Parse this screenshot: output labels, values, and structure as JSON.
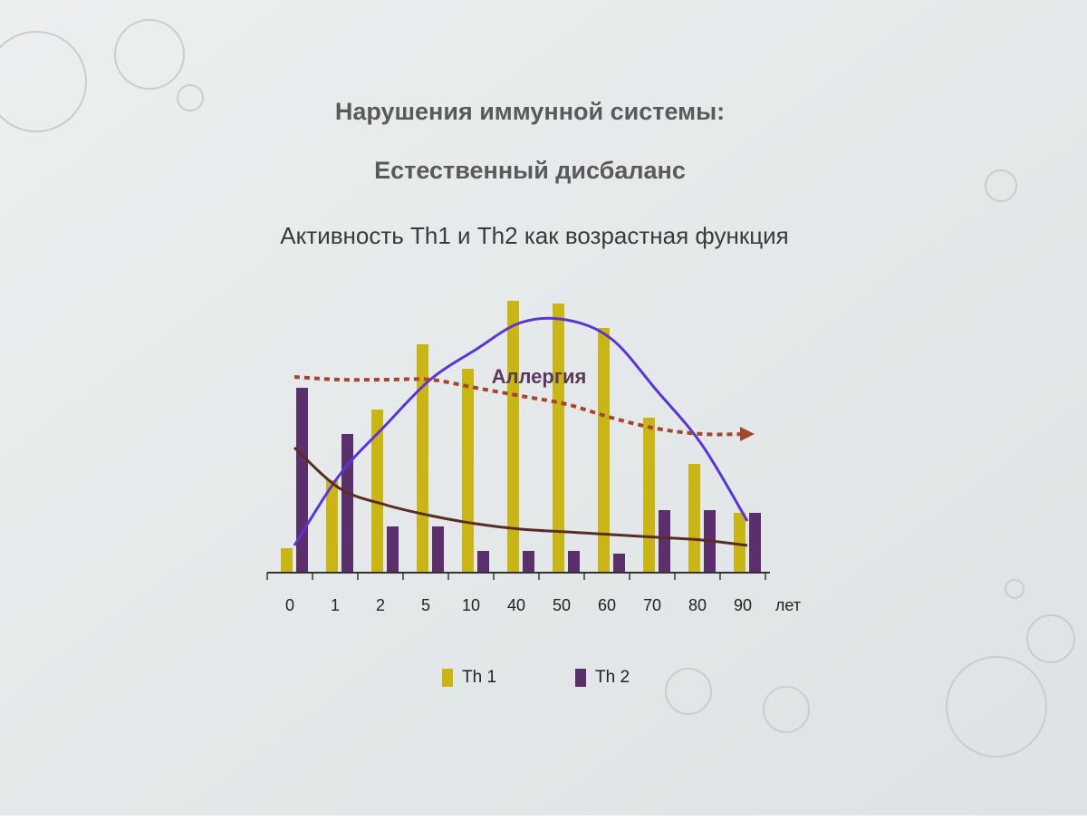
{
  "chart_data": {
    "type": "bar",
    "title": "Нарушения иммунной системы:",
    "subtitle": "Естественный дисбаланс",
    "caption": "Активность Th1 и Th2 как возрастная функция",
    "categories": [
      "0",
      "1",
      "2",
      "5",
      "10",
      "40",
      "50",
      "60",
      "70",
      "80",
      "90"
    ],
    "x_unit": "лет",
    "ylim": [
      0,
      100
    ],
    "series": [
      {
        "name": "Th 1",
        "color": "#c9b516",
        "values": [
          9,
          34,
          60,
          84,
          75,
          100,
          99,
          90,
          57,
          40,
          22
        ]
      },
      {
        "name": "Th 2",
        "color": "#5b2f6b",
        "values": [
          68,
          51,
          17,
          17,
          8,
          8,
          8,
          7,
          23,
          23,
          22
        ]
      }
    ],
    "curves": [
      {
        "color": "#5a35d6",
        "values": [
          10,
          36,
          54,
          71,
          82,
          92,
          93,
          86,
          67,
          47,
          19
        ]
      },
      {
        "color": "#5a2c24",
        "values": [
          46,
          31,
          25,
          21,
          18,
          16,
          15,
          14,
          13,
          12,
          10
        ]
      }
    ],
    "trend": {
      "name": "Аллергия",
      "color": "#a3462b",
      "values": [
        72,
        71,
        71,
        71,
        68,
        65,
        62,
        57,
        53,
        51,
        51
      ]
    },
    "legend": "bottom"
  }
}
